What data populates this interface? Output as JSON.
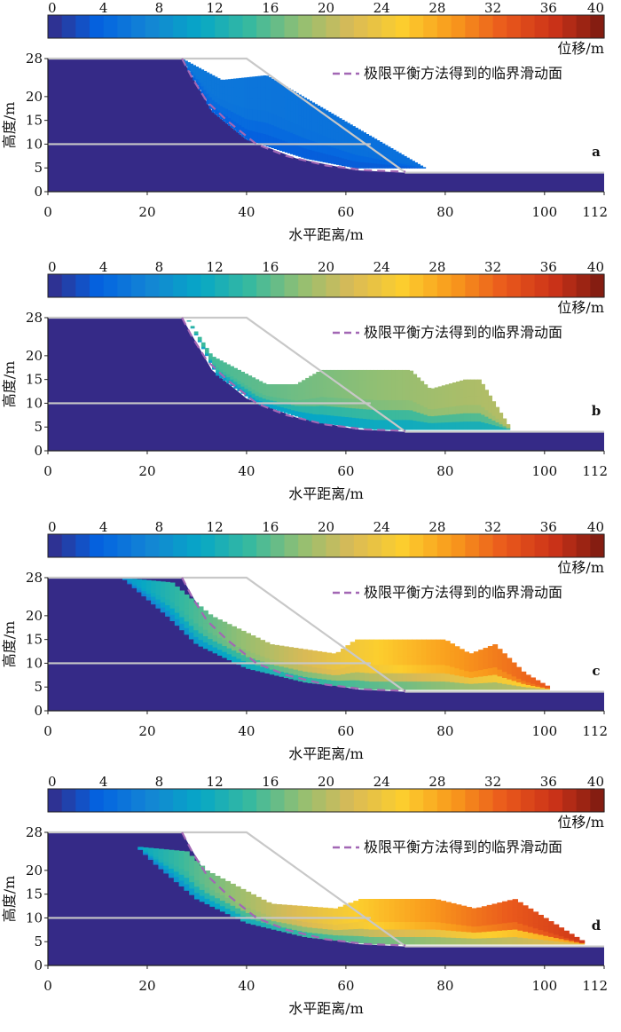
{
  "chart_data": [
    {
      "type": "heatmap",
      "panel": "a",
      "colorbar": {
        "ticks": [
          0,
          4,
          8,
          12,
          16,
          20,
          24,
          28,
          32,
          36,
          40
        ],
        "range": [
          0,
          40
        ],
        "label": "位移/m"
      },
      "xlabel": "水平距离/m",
      "ylabel": "高度/m",
      "xlim": [
        0,
        112
      ],
      "ylim": [
        0,
        28
      ],
      "xticks": [
        0,
        20,
        40,
        60,
        80,
        100,
        112
      ],
      "yticks": [
        0,
        5,
        10,
        15,
        20,
        28
      ],
      "legend": {
        "label": "极限平衡方法得到的临界滑动面",
        "position": "top-right"
      },
      "mass": {
        "upper": [
          [
            27,
            28
          ],
          [
            35,
            23.5
          ],
          [
            44,
            24.5
          ],
          [
            76,
            5
          ]
        ],
        "cut": [
          [
            27,
            28
          ],
          [
            33,
            17
          ],
          [
            40,
            11
          ],
          [
            52,
            7
          ],
          [
            62,
            5
          ],
          [
            76,
            5
          ]
        ],
        "v_front": 5,
        "v_back": 6
      }
    },
    {
      "type": "heatmap",
      "panel": "b",
      "colorbar": {
        "ticks": [
          0,
          4,
          8,
          12,
          16,
          20,
          24,
          28,
          32,
          36,
          40
        ],
        "range": [
          0,
          40
        ],
        "label": "位移/m"
      },
      "xlabel": "水平距离/m",
      "ylabel": "高度/m",
      "xlim": [
        0,
        112
      ],
      "ylim": [
        0,
        28
      ],
      "xticks": [
        0,
        20,
        40,
        60,
        80,
        100,
        112
      ],
      "yticks": [
        0,
        5,
        10,
        15,
        20,
        28
      ],
      "legend": {
        "label": "极限平衡方法得到的临界滑动面",
        "position": "top-right"
      },
      "mass": {
        "upper": [
          [
            28,
            28
          ],
          [
            33,
            20
          ],
          [
            44,
            14
          ],
          [
            50,
            14
          ],
          [
            55,
            17
          ],
          [
            73,
            17
          ],
          [
            77,
            13
          ],
          [
            84,
            15
          ],
          [
            87,
            15
          ],
          [
            93,
            5
          ]
        ],
        "cut": [
          [
            28,
            28
          ],
          [
            34,
            16
          ],
          [
            42,
            10
          ],
          [
            54,
            6
          ],
          [
            66,
            4.5
          ],
          [
            93,
            4.5
          ]
        ],
        "v_front": 20,
        "v_back": 14
      }
    },
    {
      "type": "heatmap",
      "panel": "c",
      "colorbar": {
        "ticks": [
          0,
          4,
          8,
          12,
          16,
          20,
          24,
          28,
          32,
          36,
          40
        ],
        "range": [
          0,
          40
        ],
        "label": "位移/m"
      },
      "xlabel": "水平距离/m",
      "ylabel": "高度/m",
      "xlim": [
        0,
        112
      ],
      "ylim": [
        0,
        28
      ],
      "xticks": [
        0,
        20,
        40,
        60,
        80,
        100,
        112
      ],
      "yticks": [
        0,
        5,
        10,
        15,
        20,
        28
      ],
      "legend": {
        "label": "极限平衡方法得到的临界滑动面",
        "position": "top-right"
      },
      "mass": {
        "upper": [
          [
            15,
            28
          ],
          [
            25,
            27
          ],
          [
            33,
            20
          ],
          [
            45,
            14
          ],
          [
            58,
            12
          ],
          [
            62,
            15
          ],
          [
            80,
            15
          ],
          [
            85,
            12
          ],
          [
            90,
            14
          ],
          [
            96,
            8
          ],
          [
            101,
            5
          ]
        ],
        "cut": [
          [
            15,
            28
          ],
          [
            24,
            20
          ],
          [
            30,
            14
          ],
          [
            40,
            9
          ],
          [
            52,
            6
          ],
          [
            65,
            4.5
          ],
          [
            101,
            4.5
          ]
        ],
        "v_front": 33,
        "v_back": 8
      }
    },
    {
      "type": "heatmap",
      "panel": "d",
      "colorbar": {
        "ticks": [
          0,
          4,
          8,
          12,
          16,
          20,
          24,
          28,
          32,
          36,
          40
        ],
        "range": [
          0,
          40
        ],
        "label": "位移/m"
      },
      "xlabel": "水平距离/m",
      "ylabel": "高度/m",
      "xlim": [
        0,
        112
      ],
      "ylim": [
        0,
        28
      ],
      "xticks": [
        0,
        20,
        40,
        60,
        80,
        100,
        112
      ],
      "yticks": [
        0,
        5,
        10,
        15,
        20,
        28
      ],
      "legend": {
        "label": "极限平衡方法得到的临界滑动面",
        "position": "top-right"
      },
      "mass": {
        "upper": [
          [
            15,
            28
          ],
          [
            18,
            25
          ],
          [
            28,
            24
          ],
          [
            32,
            20
          ],
          [
            45,
            13
          ],
          [
            58,
            12
          ],
          [
            63,
            14
          ],
          [
            78,
            14
          ],
          [
            86,
            12
          ],
          [
            94,
            14
          ],
          [
            108,
            5
          ]
        ],
        "cut": [
          [
            15,
            28
          ],
          [
            22,
            21
          ],
          [
            30,
            14
          ],
          [
            40,
            9
          ],
          [
            52,
            6
          ],
          [
            65,
            4.5
          ],
          [
            108,
            4.5
          ]
        ],
        "v_front": 36,
        "v_back": 8
      }
    }
  ],
  "colors": {
    "bedrock": "#352a87",
    "outline": "#c8c8c8",
    "slip_surface": "#a267b4",
    "colormap": [
      "#352a87",
      "#0363e1",
      "#1485d4",
      "#06a7c6",
      "#38b99e",
      "#92bf73",
      "#d9ba56",
      "#fcce2e",
      "#f99a1c",
      "#ea5a1c",
      "#cc3318",
      "#7a1a10"
    ]
  }
}
